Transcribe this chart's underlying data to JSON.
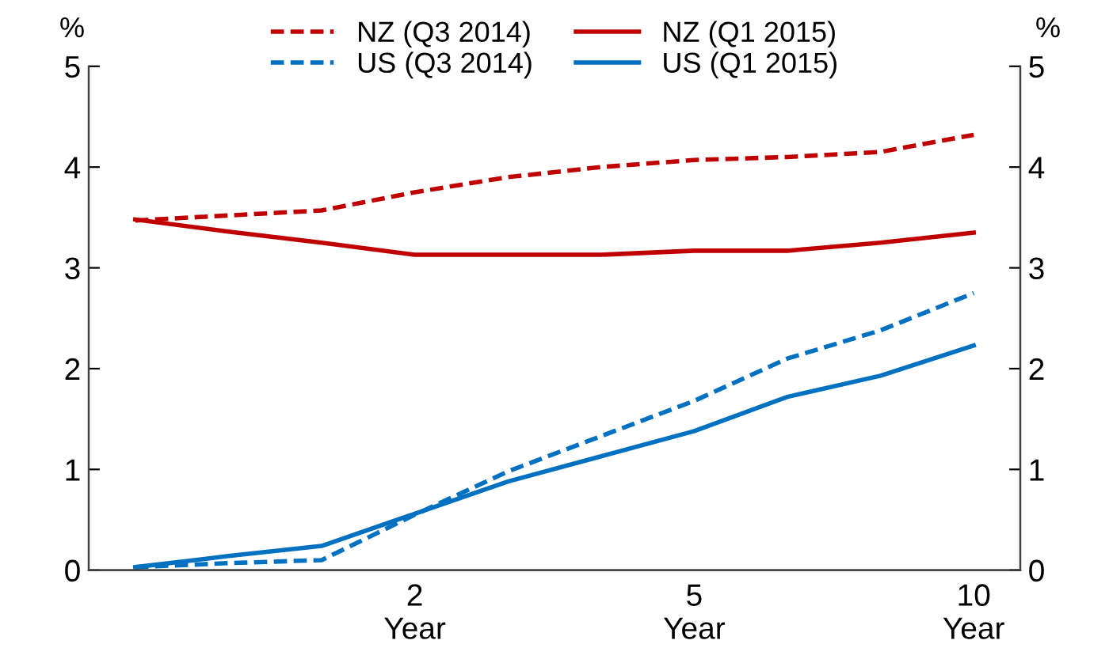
{
  "chart_data": {
    "type": "line",
    "ylabel": "%",
    "y2label": "%",
    "categories": [
      null,
      null,
      null,
      "2\nYear",
      null,
      null,
      "5\nYear",
      null,
      null,
      "10\nYear"
    ],
    "ylim": [
      0,
      5
    ],
    "yticks": [
      0,
      1,
      2,
      3,
      4,
      5
    ],
    "y2lim": [
      0,
      5
    ],
    "y2ticks": [
      0,
      1,
      2,
      3,
      4,
      5
    ],
    "grid": false,
    "legend": "top",
    "marker": "none",
    "series": [
      {
        "name": "NZ (Q3 2014)",
        "color": "#c00000",
        "line_style": "dashed",
        "values": [
          3.47,
          3.52,
          3.57,
          3.75,
          3.9,
          4.0,
          4.07,
          4.1,
          4.15,
          4.32
        ]
      },
      {
        "name": "NZ (Q1 2015)",
        "color": "#c00000",
        "line_style": "solid",
        "values": [
          3.48,
          3.36,
          3.25,
          3.13,
          3.13,
          3.13,
          3.17,
          3.17,
          3.25,
          3.35
        ]
      },
      {
        "name": "US (Q3 2014)",
        "color": "#0070c0",
        "line_style": "dashed",
        "values": [
          0.03,
          0.07,
          0.1,
          0.55,
          0.98,
          1.33,
          1.68,
          2.1,
          2.38,
          2.75
        ]
      },
      {
        "name": "US (Q1 2015)",
        "color": "#0070c0",
        "line_style": "solid",
        "values": [
          0.03,
          0.14,
          0.24,
          0.56,
          0.88,
          1.13,
          1.38,
          1.72,
          1.93,
          2.23
        ]
      }
    ]
  }
}
